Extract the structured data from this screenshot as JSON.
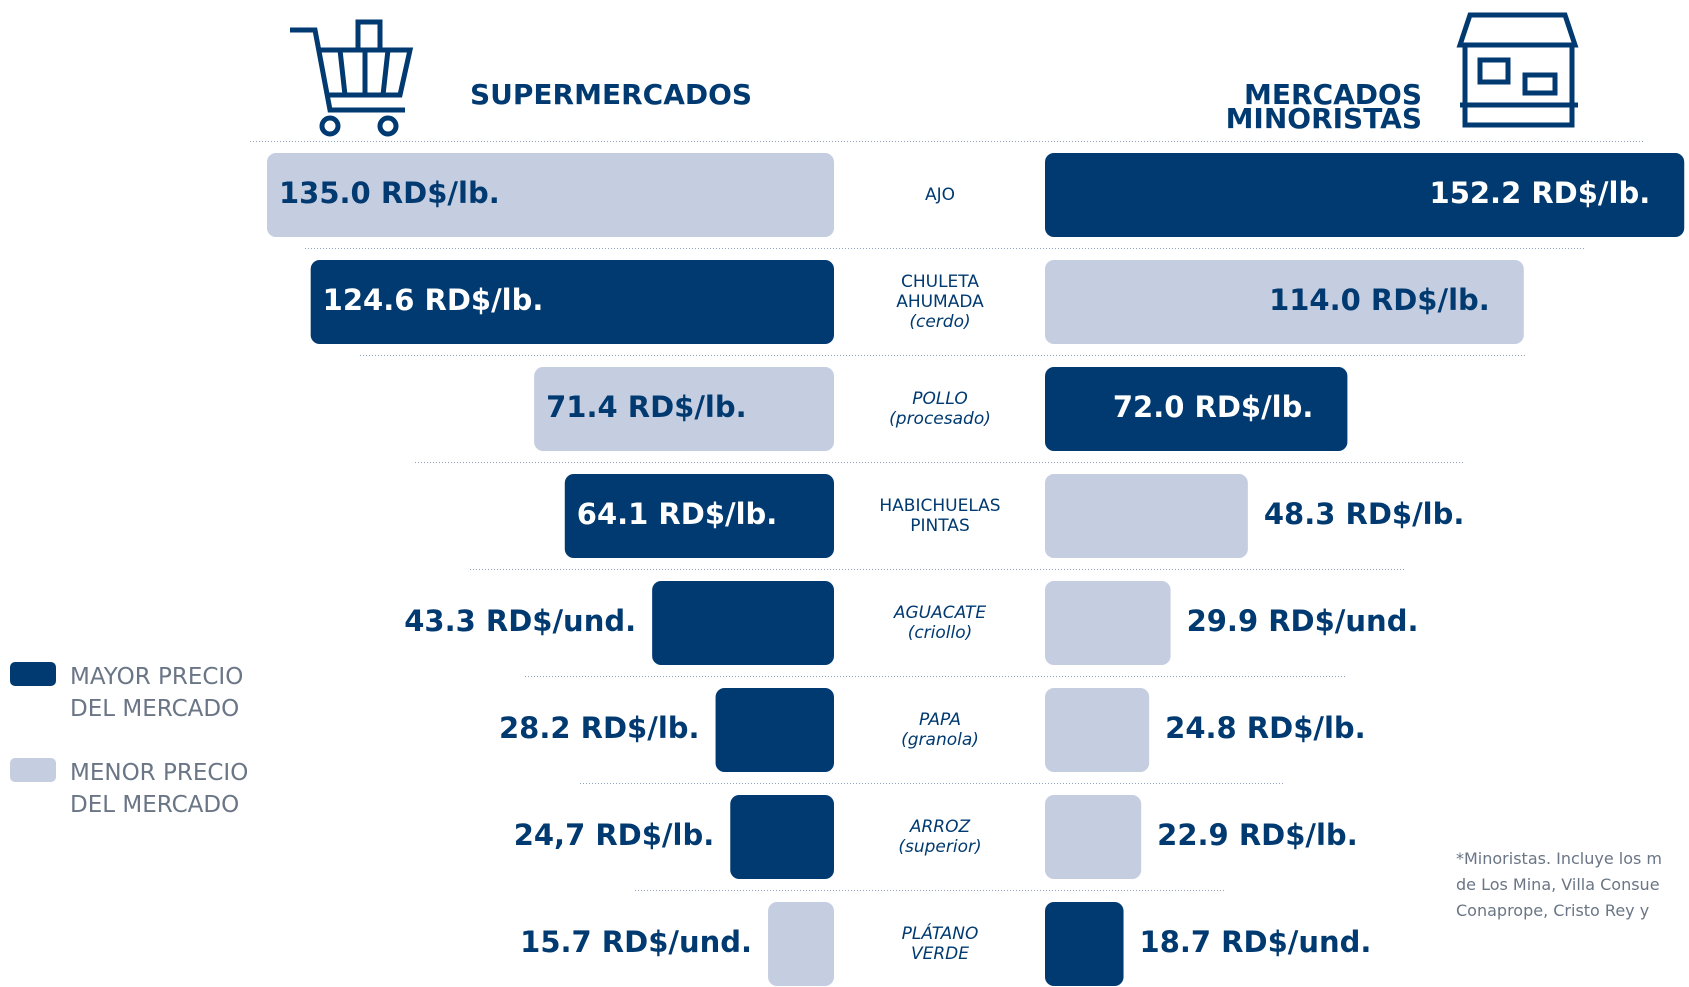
{
  "chart_data": {
    "type": "butterfly",
    "categories": [
      [
        "AJO"
      ],
      [
        "CHULETA",
        "AHUMADA",
        "(cerdo)"
      ],
      [
        "POLLO",
        "(procesado)"
      ],
      [
        "HABICHUELAS",
        "PINTAS"
      ],
      [
        "AGUACATE",
        "(criollo)"
      ],
      [
        "PAPA",
        "(granola)"
      ],
      [
        "ARROZ",
        "(superior)"
      ],
      [
        "PLÁTANO",
        "VERDE"
      ]
    ],
    "series": [
      {
        "name": [
          "SUPERMERCADOS"
        ],
        "values": [
          135.0,
          124.6,
          71.4,
          64.1,
          43.3,
          28.2,
          24.7,
          15.7
        ],
        "value_labels": [
          "135.0 RD$/lb.",
          "124.6 RD$/lb.",
          "71.4 RD$/lb.",
          "64.1 RD$/lb.",
          "43.3 RD$/und.",
          "28.2 RD$/lb.",
          "24,7 RD$/lb.",
          "15.7 RD$/und."
        ]
      },
      {
        "name": [
          "MERCADOS",
          "MINORISTAS"
        ],
        "values": [
          152.2,
          114.0,
          72.0,
          48.3,
          29.9,
          24.8,
          22.9,
          18.7
        ],
        "value_labels": [
          "152.2 RD$/lb.",
          "114.0 RD$/lb.",
          "72.0 RD$/lb.",
          "48.3 RD$/lb.",
          "29.9 RD$/und.",
          "24.8 RD$/lb.",
          "22.9 RD$/lb.",
          "18.7 RD$/und."
        ]
      }
    ],
    "legend": [
      {
        "label": [
          "MAYOR PRECIO",
          "DEL MERCADO"
        ],
        "color": "#003a70"
      },
      {
        "label": [
          "MENOR PRECIO",
          "DEL MERCADO"
        ],
        "color": "#c5cde0"
      }
    ],
    "note": [
      "*Minoristas. Incluye los m",
      "de Los Mina, Villa Consue",
      "Conaprope, Cristo Rey y"
    ]
  }
}
